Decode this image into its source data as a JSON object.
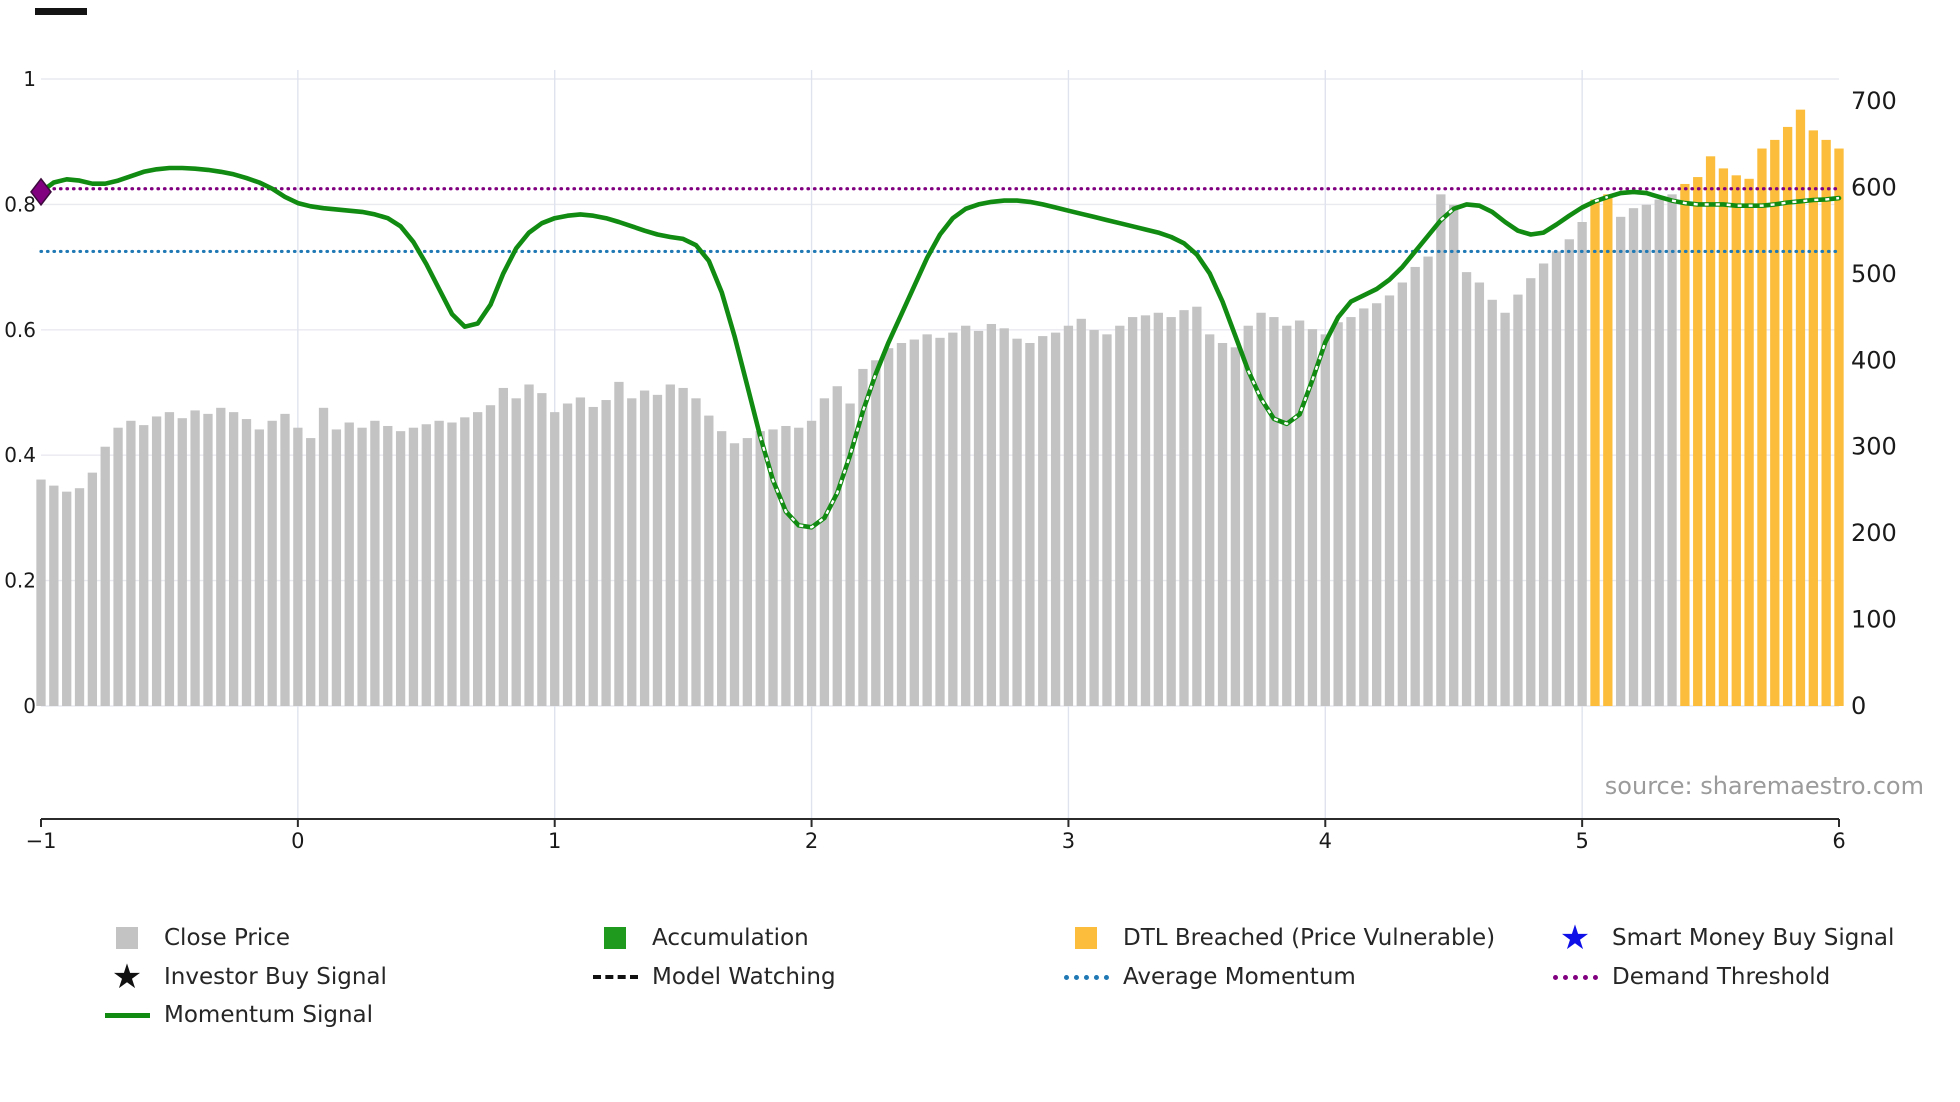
{
  "colors": {
    "close_price_bar": "#c3c3c3",
    "dtl_breached_bar": "#fbbd3b",
    "momentum_line": "#118b11",
    "accumulation": "#1f9a1f",
    "average_momentum": "#2079b4",
    "demand_threshold": "#800080",
    "smart_money_star": "#0f0fe8",
    "investor_star": "#111111",
    "model_watching": "#111111",
    "buy_marker": "#800080",
    "axis_text": "#1a1a1a",
    "spine": "#2b2b2b",
    "grid_h": "#e9eaf0",
    "grid_v": "#dfe3ee",
    "source_text": "#9b9b9b"
  },
  "icons": {
    "star": "★"
  },
  "legend": {
    "items": [
      {
        "label": "Close Price"
      },
      {
        "label": "Accumulation"
      },
      {
        "label": "DTL Breached (Price Vulnerable)"
      },
      {
        "label": "Smart Money Buy Signal"
      },
      {
        "label": "Investor Buy Signal"
      },
      {
        "label": "Model Watching"
      },
      {
        "label": "Average Momentum"
      },
      {
        "label": "Demand Threshold"
      },
      {
        "label": "Momentum Signal"
      }
    ]
  },
  "chart_data": {
    "type": "bar+line",
    "title": "",
    "source": "source: sharemaestro.com",
    "x_axis": {
      "tick_values": [
        -1,
        0,
        1,
        2,
        3,
        4,
        5,
        6
      ],
      "tick_labels": [
        "−1",
        "0",
        "1",
        "2",
        "3",
        "4",
        "5",
        "6"
      ],
      "range": [
        -1.03,
        6.03
      ]
    },
    "left_axis": {
      "series": "Momentum Signal",
      "tick_values": [
        0,
        0.2,
        0.4,
        0.6,
        0.8,
        1
      ],
      "tick_labels": [
        "0",
        "0.2",
        "0.4",
        "0.6",
        "0.8",
        "1"
      ],
      "range": [
        -0.18,
        1.05
      ]
    },
    "right_axis": {
      "series": "Close Price",
      "tick_values": [
        0,
        100,
        200,
        300,
        400,
        500,
        600,
        700
      ],
      "tick_labels": [
        "0",
        "100",
        "200",
        "300",
        "400",
        "500",
        "600",
        "700"
      ],
      "range": [
        0,
        700
      ]
    },
    "x_start": -1,
    "x_step": 0.05,
    "series": [
      {
        "name": "Close Price",
        "type": "bar",
        "axis": "right",
        "values": [
          262,
          255,
          248,
          252,
          270,
          300,
          322,
          330,
          325,
          335,
          340,
          333,
          342,
          338,
          345,
          340,
          332,
          320,
          330,
          338,
          322,
          310,
          345,
          320,
          328,
          322,
          330,
          324,
          318,
          322,
          326,
          330,
          328,
          334,
          340,
          348,
          368,
          356,
          372,
          362,
          340,
          350,
          357,
          346,
          354,
          375,
          356,
          365,
          360,
          372,
          368,
          356,
          336,
          318,
          304,
          310,
          318,
          320,
          324,
          322,
          330,
          356,
          370,
          350,
          390,
          400,
          414,
          420,
          424,
          430,
          426,
          432,
          440,
          434,
          442,
          437,
          425,
          420,
          428,
          432,
          440,
          448,
          435,
          430,
          440,
          450,
          452,
          455,
          450,
          458,
          462,
          430,
          420,
          415,
          440,
          455,
          450,
          440,
          446,
          436,
          430,
          444,
          450,
          460,
          466,
          475,
          490,
          508,
          520,
          592,
          580,
          502,
          490,
          470,
          455,
          476,
          495,
          512,
          526,
          540,
          560,
          586,
          592,
          566,
          576,
          580,
          586,
          592,
          604,
          612,
          636,
          622,
          614,
          610,
          645,
          655,
          670,
          690,
          666,
          655,
          645
        ]
      },
      {
        "name": "Momentum Signal",
        "type": "line",
        "axis": "left",
        "values": [
          0.82,
          0.835,
          0.84,
          0.838,
          0.833,
          0.833,
          0.838,
          0.845,
          0.852,
          0.856,
          0.858,
          0.858,
          0.857,
          0.855,
          0.852,
          0.848,
          0.842,
          0.835,
          0.825,
          0.812,
          0.802,
          0.797,
          0.794,
          0.792,
          0.79,
          0.788,
          0.784,
          0.778,
          0.765,
          0.74,
          0.705,
          0.665,
          0.625,
          0.605,
          0.61,
          0.64,
          0.69,
          0.73,
          0.755,
          0.77,
          0.778,
          0.782,
          0.784,
          0.782,
          0.778,
          0.772,
          0.765,
          0.758,
          0.752,
          0.748,
          0.745,
          0.735,
          0.71,
          0.66,
          0.59,
          0.51,
          0.43,
          0.36,
          0.31,
          0.288,
          0.285,
          0.3,
          0.34,
          0.4,
          0.47,
          0.53,
          0.58,
          0.625,
          0.67,
          0.715,
          0.752,
          0.778,
          0.793,
          0.8,
          0.804,
          0.806,
          0.806,
          0.804,
          0.8,
          0.795,
          0.79,
          0.785,
          0.78,
          0.775,
          0.77,
          0.765,
          0.76,
          0.755,
          0.748,
          0.738,
          0.72,
          0.69,
          0.645,
          0.59,
          0.535,
          0.49,
          0.458,
          0.45,
          0.465,
          0.52,
          0.58,
          0.62,
          0.645,
          0.655,
          0.665,
          0.68,
          0.7,
          0.725,
          0.75,
          0.775,
          0.793,
          0.8,
          0.798,
          0.788,
          0.772,
          0.758,
          0.752,
          0.755,
          0.768,
          0.782,
          0.795,
          0.805,
          0.812,
          0.818,
          0.82,
          0.818,
          0.812,
          0.806,
          0.802,
          0.8,
          0.8,
          0.8,
          0.798,
          0.798,
          0.798,
          0.8,
          0.803,
          0.805,
          0.807,
          0.808,
          0.81
        ]
      }
    ],
    "dtl_breached_x_ranges": [
      [
        5.03,
        5.12
      ],
      [
        5.38,
        6.01
      ]
    ],
    "reference_lines": [
      {
        "name": "Average Momentum",
        "y": 0.725,
        "style": "dotted",
        "color": "average_momentum"
      },
      {
        "name": "Demand Threshold",
        "y": 0.825,
        "style": "dotted",
        "color": "demand_threshold"
      }
    ],
    "markers": [
      {
        "name": "Investor Buy Signal",
        "shape": "diamond",
        "x": -1,
        "y": 0.82,
        "color": "buy_marker"
      }
    ],
    "grid": true,
    "legend_position": "below"
  }
}
